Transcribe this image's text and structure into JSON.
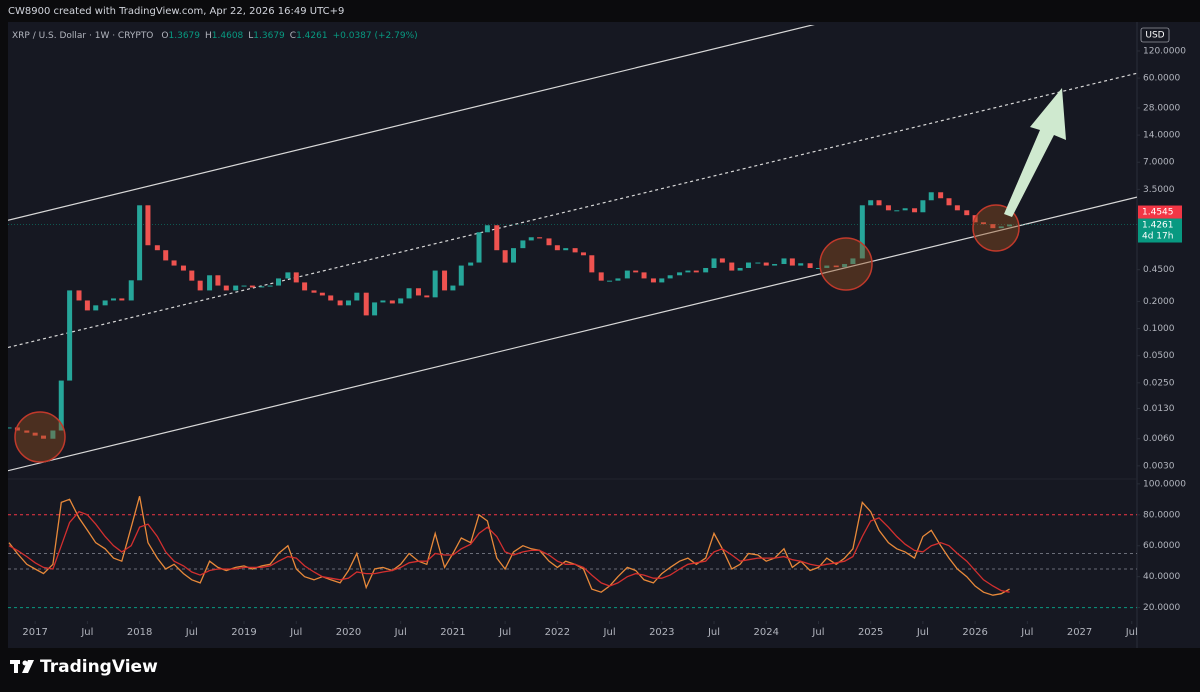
{
  "header": {
    "credit": "CW8900 created with TradingView.com, Apr 22, 2026 16:49 UTC+9",
    "symbol": "XRP / U.S. Dollar · 1W · CRYPTO",
    "ohlc": [
      {
        "label": "O",
        "value": "1.3679"
      },
      {
        "label": "H",
        "value": "1.4608"
      },
      {
        "label": "L",
        "value": "1.3679"
      },
      {
        "label": "C",
        "value": "1.4261"
      }
    ],
    "change": "+0.0387 (+2.79%)"
  },
  "currency": "USD",
  "footer": {
    "brand": "TradingView"
  },
  "chart_data": [
    {
      "type": "candlestick",
      "log_scale": true,
      "grid": false,
      "up_color": "#26a69a",
      "down_color": "#ef5350",
      "xlim": [
        2016.74,
        2027.55
      ],
      "ylim": [
        0.0022,
        233
      ],
      "yticks": [
        {
          "value": 120,
          "label": "120.0000"
        },
        {
          "value": 60,
          "label": "60.0000"
        },
        {
          "value": 28,
          "label": "28.0000"
        },
        {
          "value": 14,
          "label": "14.0000"
        },
        {
          "value": 7,
          "label": "7.0000"
        },
        {
          "value": 3.5,
          "label": "3.5000"
        },
        {
          "value": 0.45,
          "label": "0.4500"
        },
        {
          "value": 0.2,
          "label": "0.2000"
        },
        {
          "value": 0.1,
          "label": "0.1000"
        },
        {
          "value": 0.05,
          "label": "0.0500"
        },
        {
          "value": 0.025,
          "label": "0.0250"
        },
        {
          "value": 0.013,
          "label": "0.0130"
        },
        {
          "value": 0.006,
          "label": "0.0060"
        },
        {
          "value": 0.003,
          "label": "0.0030"
        }
      ],
      "x": [
        2016.75,
        2016.83,
        2016.92,
        2017,
        2017.08,
        2017.17,
        2017.25,
        2017.33,
        2017.42,
        2017.5,
        2017.58,
        2017.67,
        2017.75,
        2017.83,
        2017.92,
        2018,
        2018.08,
        2018.17,
        2018.25,
        2018.33,
        2018.42,
        2018.5,
        2018.58,
        2018.67,
        2018.75,
        2018.83,
        2018.92,
        2019,
        2019.08,
        2019.17,
        2019.25,
        2019.33,
        2019.42,
        2019.5,
        2019.58,
        2019.67,
        2019.75,
        2019.83,
        2019.92,
        2020,
        2020.08,
        2020.17,
        2020.25,
        2020.33,
        2020.42,
        2020.5,
        2020.58,
        2020.67,
        2020.75,
        2020.83,
        2020.92,
        2021,
        2021.08,
        2021.17,
        2021.25,
        2021.33,
        2021.42,
        2021.5,
        2021.58,
        2021.67,
        2021.75,
        2021.83,
        2021.92,
        2022,
        2022.08,
        2022.17,
        2022.25,
        2022.33,
        2022.42,
        2022.5,
        2022.58,
        2022.67,
        2022.75,
        2022.83,
        2022.92,
        2023,
        2023.08,
        2023.17,
        2023.25,
        2023.33,
        2023.42,
        2023.5,
        2023.58,
        2023.67,
        2023.75,
        2023.83,
        2023.92,
        2024,
        2024.08,
        2024.17,
        2024.25,
        2024.33,
        2024.42,
        2024.5,
        2024.58,
        2024.67,
        2024.75,
        2024.83,
        2024.92,
        2025,
        2025.08,
        2025.17,
        2025.25,
        2025.33,
        2025.42,
        2025.5,
        2025.58,
        2025.67,
        2025.75,
        2025.83,
        2025.92,
        2026,
        2026.08,
        2026.17,
        2026.25,
        2026.33
      ],
      "values": [
        0.008,
        0.0074,
        0.007,
        0.0065,
        0.006,
        0.0074,
        0.0265,
        0.265,
        0.205,
        0.159,
        0.181,
        0.205,
        0.216,
        0.205,
        0.343,
        2.33,
        0.84,
        0.74,
        0.57,
        0.5,
        0.44,
        0.34,
        0.265,
        0.39,
        0.3,
        0.265,
        0.3,
        0.3,
        0.286,
        0.294,
        0.3,
        0.36,
        0.42,
        0.325,
        0.265,
        0.25,
        0.233,
        0.205,
        0.181,
        0.205,
        0.25,
        0.14,
        0.195,
        0.205,
        0.19,
        0.216,
        0.28,
        0.233,
        0.222,
        0.44,
        0.265,
        0.3,
        0.5,
        0.54,
        1.17,
        1.4,
        0.74,
        0.54,
        0.78,
        0.95,
        1.03,
        1.0,
        0.84,
        0.74,
        0.78,
        0.7,
        0.65,
        0.42,
        0.34,
        0.34,
        0.36,
        0.44,
        0.42,
        0.36,
        0.325,
        0.36,
        0.39,
        0.42,
        0.44,
        0.42,
        0.47,
        0.6,
        0.54,
        0.44,
        0.47,
        0.54,
        0.54,
        0.5,
        0.52,
        0.6,
        0.5,
        0.53,
        0.47,
        0.47,
        0.5,
        0.48,
        0.52,
        0.6,
        2.33,
        2.65,
        2.33,
        2.05,
        2.05,
        2.16,
        1.95,
        2.65,
        3.25,
        2.79,
        2.33,
        2.05,
        1.81,
        1.51,
        1.44,
        1.3,
        1.36,
        1.4261
      ],
      "trendlines": [
        {
          "x": [
            2016.74,
            2027.55
          ],
          "y": [
            0.00265,
            2.87
          ],
          "style": "solid",
          "color": "#d8d8d8"
        },
        {
          "x": [
            2016.74,
            2027.55
          ],
          "y": [
            0.0617,
            68
          ],
          "style": "dashed",
          "color": "#d8d8d8"
        },
        {
          "x": [
            2016.74,
            2024.55
          ],
          "y": [
            1.59,
            250
          ],
          "style": "solid",
          "color": "#d8d8d8"
        }
      ],
      "markers": [
        {
          "value": 1.4545,
          "label": "1.4545",
          "color": "#f23645"
        },
        {
          "value": 1.4261,
          "label": "1.4261",
          "sublabel": "4d 17h",
          "color": "#089981"
        }
      ]
    },
    {
      "type": "line",
      "grid": false,
      "xlim": [
        2016.74,
        2027.55
      ],
      "ylim": [
        12,
        102.5
      ],
      "xticks": [
        2017,
        {
          "value": 2017.5,
          "label": "Jul"
        },
        2018,
        {
          "value": 2018.5,
          "label": "Jul"
        },
        2019,
        {
          "value": 2019.5,
          "label": "Jul"
        },
        2020,
        {
          "value": 2020.5,
          "label": "Jul"
        },
        2021,
        {
          "value": 2021.5,
          "label": "Jul"
        },
        2022,
        {
          "value": 2022.5,
          "label": "Jul"
        },
        2023,
        {
          "value": 2023.5,
          "label": "Jul"
        },
        2024,
        {
          "value": 2024.5,
          "label": "Jul"
        },
        2025,
        {
          "value": 2025.5,
          "label": "Jul"
        },
        2026,
        {
          "value": 2026.5,
          "label": "Jul"
        },
        2027,
        {
          "value": 2027.5,
          "label": "Jul"
        }
      ],
      "yticks": [
        {
          "value": 100,
          "label": "100.0000"
        },
        {
          "value": 80,
          "label": "80.0000"
        },
        {
          "value": 60,
          "label": "60.0000"
        },
        {
          "value": 40,
          "label": "40.0000"
        },
        {
          "value": 20,
          "label": "20.0000"
        }
      ],
      "levels": [
        {
          "value": 80,
          "color": "#f23645"
        },
        {
          "value": 55,
          "color": "#6a6d78"
        },
        {
          "value": 45,
          "color": "#6a6d78"
        },
        {
          "value": 20,
          "color": "#089981"
        }
      ],
      "x": [
        2016.75,
        2016.83,
        2016.92,
        2017,
        2017.08,
        2017.17,
        2017.25,
        2017.33,
        2017.42,
        2017.5,
        2017.58,
        2017.67,
        2017.75,
        2017.83,
        2017.92,
        2018,
        2018.08,
        2018.17,
        2018.25,
        2018.33,
        2018.42,
        2018.5,
        2018.58,
        2018.67,
        2018.75,
        2018.83,
        2018.92,
        2019,
        2019.08,
        2019.17,
        2019.25,
        2019.33,
        2019.42,
        2019.5,
        2019.58,
        2019.67,
        2019.75,
        2019.83,
        2019.92,
        2020,
        2020.08,
        2020.17,
        2020.25,
        2020.33,
        2020.42,
        2020.5,
        2020.58,
        2020.67,
        2020.75,
        2020.83,
        2020.92,
        2021,
        2021.08,
        2021.17,
        2021.25,
        2021.33,
        2021.42,
        2021.5,
        2021.58,
        2021.67,
        2021.75,
        2021.83,
        2021.92,
        2022,
        2022.08,
        2022.17,
        2022.25,
        2022.33,
        2022.42,
        2022.5,
        2022.58,
        2022.67,
        2022.75,
        2022.83,
        2022.92,
        2023,
        2023.08,
        2023.17,
        2023.25,
        2023.33,
        2023.42,
        2023.5,
        2023.58,
        2023.67,
        2023.75,
        2023.83,
        2023.92,
        2024,
        2024.08,
        2024.17,
        2024.25,
        2024.33,
        2024.42,
        2024.5,
        2024.58,
        2024.67,
        2024.75,
        2024.83,
        2024.92,
        2025,
        2025.08,
        2025.17,
        2025.25,
        2025.33,
        2025.42,
        2025.5,
        2025.58,
        2025.67,
        2025.75,
        2025.83,
        2025.92,
        2026,
        2026.08,
        2026.17,
        2026.25,
        2026.33
      ],
      "series": [
        {
          "color": "#e8893a",
          "values": [
            62,
            55,
            48,
            45,
            42,
            48,
            88,
            90,
            78,
            70,
            62,
            58,
            52,
            50,
            72,
            92,
            62,
            52,
            45,
            48,
            42,
            38,
            36,
            50,
            46,
            44,
            46,
            47,
            45,
            47,
            48,
            55,
            60,
            45,
            40,
            38,
            40,
            38,
            36,
            44,
            55,
            33,
            45,
            46,
            44,
            48,
            55,
            50,
            48,
            68,
            46,
            55,
            65,
            62,
            80,
            76,
            52,
            45,
            56,
            60,
            58,
            57,
            50,
            46,
            50,
            48,
            45,
            32,
            30,
            34,
            40,
            46,
            44,
            38,
            36,
            42,
            46,
            50,
            52,
            48,
            52,
            68,
            58,
            45,
            48,
            55,
            54,
            50,
            52,
            58,
            46,
            50,
            44,
            46,
            52,
            48,
            52,
            58,
            88,
            82,
            70,
            62,
            58,
            56,
            52,
            66,
            70,
            60,
            52,
            45,
            40,
            34,
            30,
            28,
            29,
            32
          ]
        },
        {
          "color": "#d32f2f",
          "values": [
            60,
            57,
            53,
            49,
            46,
            45,
            60,
            75,
            82,
            80,
            74,
            66,
            60,
            56,
            60,
            72,
            74,
            66,
            56,
            50,
            47,
            43,
            41,
            44,
            45,
            45,
            45,
            46,
            46,
            46,
            47,
            50,
            53,
            52,
            47,
            43,
            40,
            39,
            38,
            39,
            43,
            42,
            42,
            43,
            44,
            46,
            49,
            50,
            50,
            55,
            54,
            54,
            58,
            61,
            68,
            72,
            66,
            56,
            54,
            56,
            57,
            57,
            54,
            50,
            48,
            48,
            46,
            41,
            36,
            34,
            36,
            40,
            42,
            41,
            39,
            39,
            41,
            45,
            48,
            49,
            50,
            56,
            58,
            54,
            50,
            51,
            52,
            52,
            52,
            53,
            51,
            50,
            48,
            47,
            48,
            49,
            50,
            53,
            66,
            76,
            78,
            72,
            66,
            61,
            57,
            56,
            60,
            62,
            60,
            55,
            50,
            44,
            38,
            34,
            31,
            30
          ]
        }
      ]
    }
  ]
}
